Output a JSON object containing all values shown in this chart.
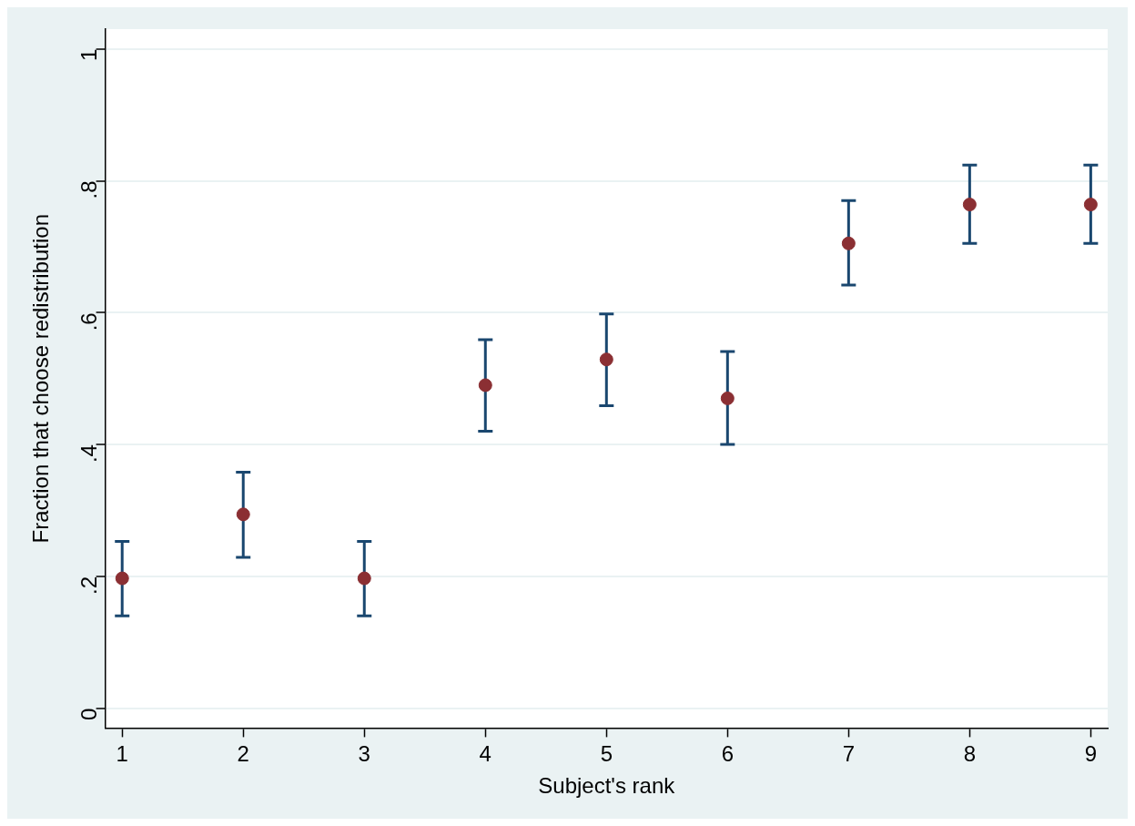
{
  "chart_data": {
    "type": "scatter",
    "xlabel": "Subject's rank",
    "ylabel": "Fraction that choose redistribution",
    "x": [
      1,
      2,
      3,
      4,
      5,
      6,
      7,
      8,
      9
    ],
    "series": [
      {
        "color": "#8b2f33",
        "values": [
          0.197,
          0.294,
          0.197,
          0.49,
          0.529,
          0.47,
          0.705,
          0.764,
          0.764
        ],
        "errors": [
          [
            0.14,
            0.253
          ],
          [
            0.229,
            0.358
          ],
          [
            0.14,
            0.253
          ],
          [
            0.42,
            0.559
          ],
          [
            0.459,
            0.598
          ],
          [
            0.4,
            0.541
          ],
          [
            0.642,
            0.77
          ],
          [
            0.705,
            0.824
          ],
          [
            0.705,
            0.824
          ]
        ]
      }
    ],
    "xlim": [
      0.86,
      9.14
    ],
    "xticks": [
      1,
      2,
      3,
      4,
      5,
      6,
      7,
      8,
      9
    ],
    "ylim": [
      -0.03,
      1.03
    ],
    "yticks": [
      {
        "value": 0,
        "label": "0"
      },
      {
        "value": 0.2,
        "label": ".2"
      },
      {
        "value": 0.4,
        "label": ".4"
      },
      {
        "value": 0.6,
        "label": ".6"
      },
      {
        "value": 0.8,
        "label": ".8"
      },
      {
        "value": 1,
        "label": "1"
      }
    ],
    "grid": "y",
    "legend": false,
    "marker": "circle"
  }
}
